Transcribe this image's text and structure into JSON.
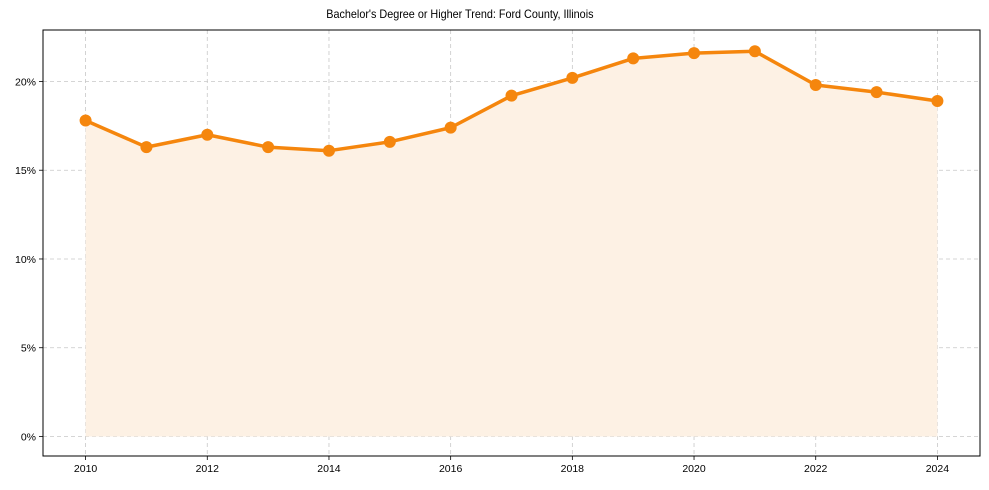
{
  "title": "Bachelor's Degree or Higher Trend: Ford County, Illinois",
  "colors": {
    "line": "#f5860d",
    "fill": "#fdf1e4",
    "grid": "#c8c8c8",
    "axis": "#000000"
  },
  "chart_data": {
    "type": "area",
    "title": "Bachelor's Degree or Higher Trend: Ford County, Illinois",
    "xlabel": "",
    "ylabel": "",
    "x": [
      2010,
      2011,
      2012,
      2013,
      2014,
      2015,
      2016,
      2017,
      2018,
      2019,
      2020,
      2021,
      2022,
      2023,
      2024
    ],
    "series": [
      {
        "name": "Bachelor's Degree or Higher",
        "values": [
          17.8,
          16.3,
          17.0,
          16.3,
          16.1,
          16.6,
          17.4,
          19.2,
          20.2,
          21.3,
          21.6,
          21.7,
          19.8,
          19.4,
          18.9
        ]
      }
    ],
    "x_ticks": [
      "2010",
      "2012",
      "2014",
      "2016",
      "2018",
      "2020",
      "2022",
      "2024"
    ],
    "y_ticks": [
      "0%",
      "5%",
      "10%",
      "15%",
      "20%"
    ],
    "ylim": [
      -1.1,
      22.9
    ],
    "xlim": [
      2009.3,
      2024.7
    ],
    "grid": true,
    "legend": null
  }
}
